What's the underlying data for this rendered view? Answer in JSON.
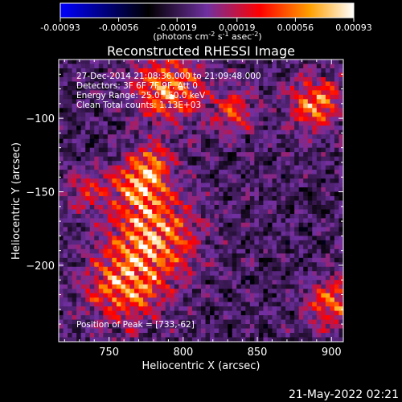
{
  "chart_data": {
    "type": "heatmap",
    "title": "Reconstructed RHESSI Image",
    "xlabel": "Heliocentric X (arcsec)",
    "ylabel": "Heliocentric Y (arcsec)",
    "xlim": [
      716,
      908
    ],
    "ylim": [
      -252,
      -60
    ],
    "x_ticks": [
      750,
      800,
      850,
      900
    ],
    "y_ticks": [
      -100,
      -150,
      -200
    ],
    "colorbar": {
      "min": -0.00093,
      "max": 0.00093,
      "ticks": [
        "-0.00093",
        "-0.00056",
        "-0.00019",
        "0.00019",
        "0.00056",
        "0.00093"
      ],
      "unit_label": "(photons cm",
      "unit_sup1": "-2",
      "unit_mid1": " s",
      "unit_sup2": "-1",
      "unit_mid2": " asec",
      "unit_sup3": "-2",
      "unit_end": ")"
    },
    "annotations": {
      "time": "27-Dec-2014 21:08:36.000 to 21:09:48.000",
      "detectors": "Detectors: 3F 6F 7F 9F, Att 0",
      "energy": "Energy Range: 25.0 - 50.0 keV",
      "method": "Clean     Total counts: 1.13E+03",
      "peak": "Position of Peak = [733,-62]"
    },
    "grid": false,
    "colormap": [
      "#0000ff",
      "#000000",
      "#7030a0",
      "#ff0000",
      "#ffa000",
      "#ffffff"
    ]
  },
  "footer": {
    "timestamp": "21-May-2022 02:21"
  }
}
